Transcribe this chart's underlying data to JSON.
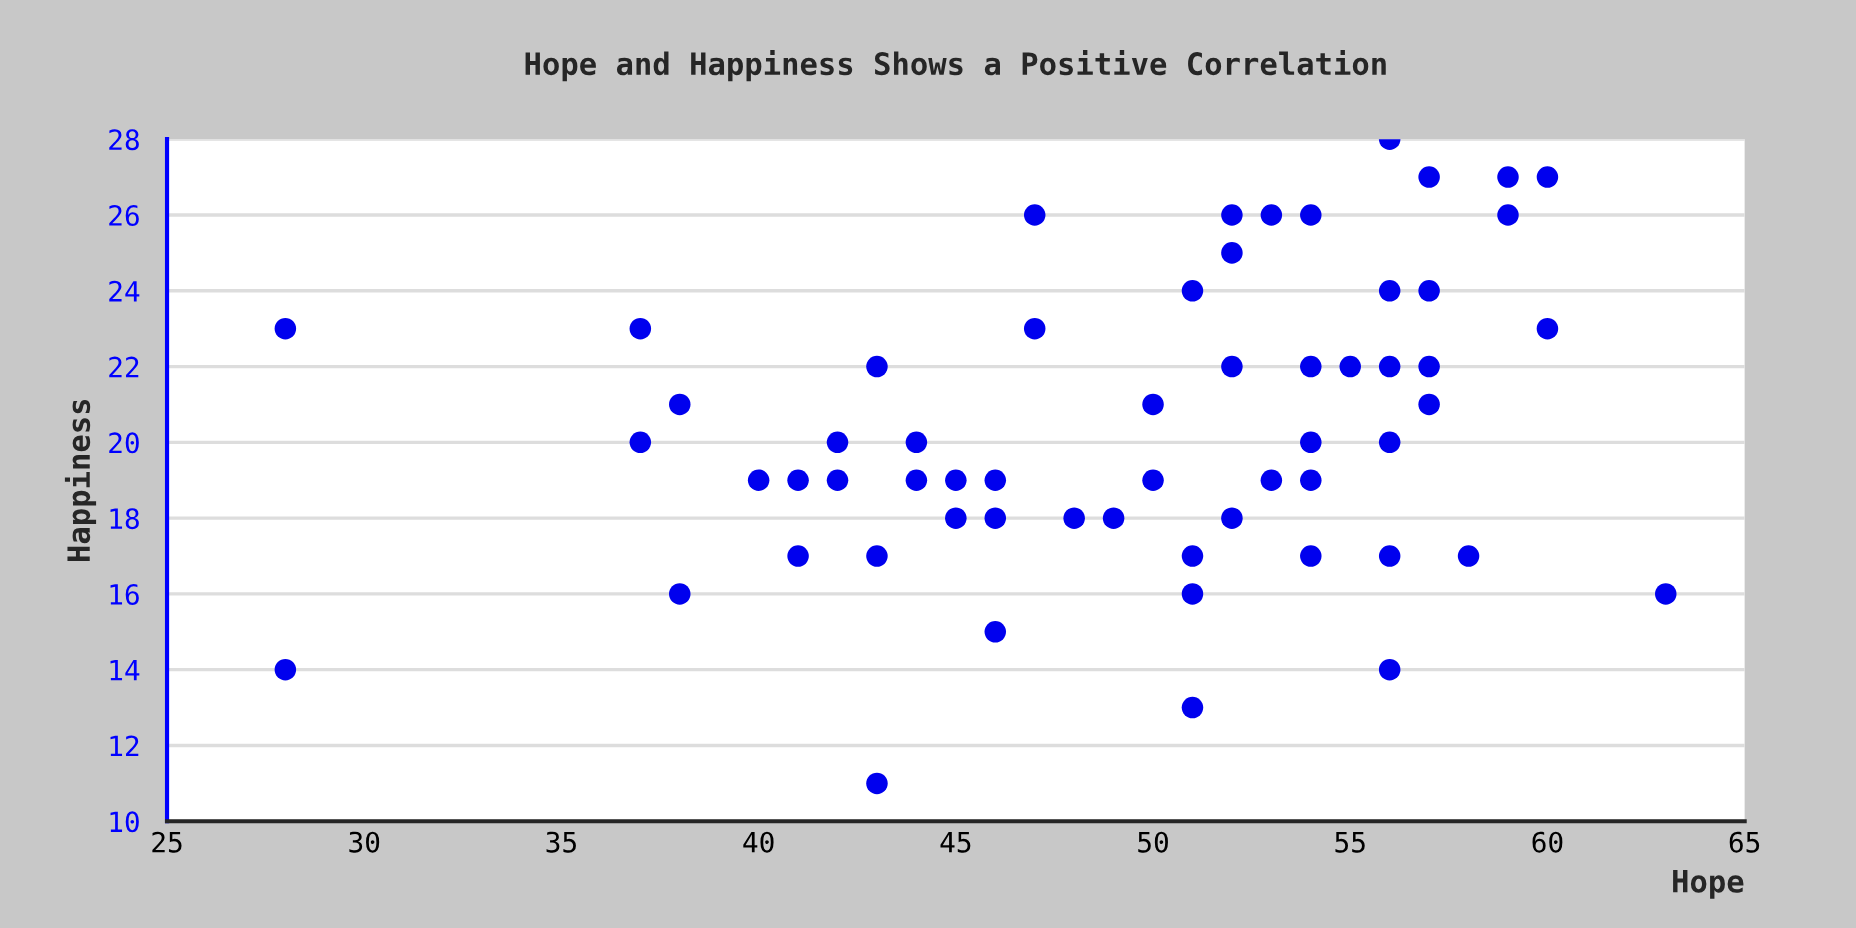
{
  "chart_data": {
    "type": "scatter",
    "title": "Hope and Happiness Shows a Positive Correlation",
    "xlabel": "Hope",
    "ylabel": "Happiness",
    "series": [
      {
        "color": "#0000ee",
        "x": [
          28,
          28,
          37,
          37,
          38,
          38,
          40,
          41,
          41,
          42,
          42,
          43,
          43,
          43,
          44,
          44,
          45,
          45,
          46,
          46,
          46,
          47,
          47,
          48,
          49,
          50,
          50,
          51,
          51,
          51,
          51,
          52,
          52,
          52,
          52,
          53,
          53,
          54,
          54,
          54,
          54,
          54,
          55,
          56,
          56,
          56,
          56,
          56,
          56,
          57,
          57,
          57,
          57,
          58,
          59,
          59,
          60,
          60,
          63
        ],
        "values": [
          23,
          14,
          23,
          20,
          21,
          16,
          19,
          19,
          17,
          20,
          19,
          22,
          17,
          11,
          20,
          19,
          19,
          18,
          19,
          18,
          15,
          26,
          23,
          18,
          18,
          21,
          19,
          24,
          17,
          16,
          13,
          26,
          25,
          22,
          18,
          26,
          19,
          26,
          22,
          20,
          19,
          17,
          22,
          28,
          24,
          22,
          20,
          17,
          14,
          27,
          24,
          22,
          21,
          17,
          27,
          26,
          27,
          23,
          16
        ]
      }
    ],
    "xlim": [
      25,
      65
    ],
    "xticks": [
      25,
      30,
      35,
      40,
      45,
      50,
      55,
      60,
      65
    ],
    "ylim": [
      10,
      28
    ],
    "yticks": [
      10,
      12,
      14,
      16,
      18,
      20,
      22,
      24,
      26,
      28
    ],
    "grid": "y",
    "marker": "circle",
    "legend": false
  }
}
